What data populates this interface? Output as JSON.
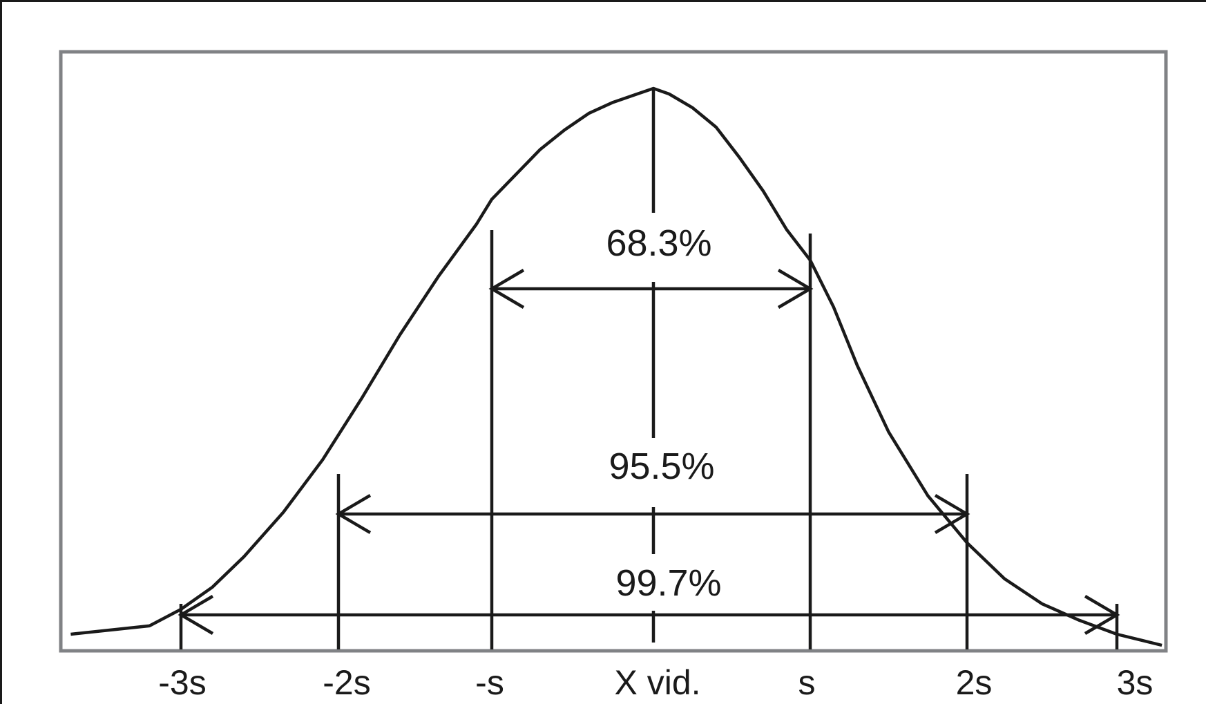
{
  "chart_data": {
    "type": "line",
    "title": "",
    "xlabel": "",
    "ylabel": "",
    "tick_labels": [
      "-3s",
      "-2s",
      "-s",
      "X vid.",
      "s",
      "2s",
      "3s"
    ],
    "x_ticks": [
      -3,
      -2,
      -1,
      0,
      1,
      2,
      3
    ],
    "xlim": [
      -3.7,
      3.3
    ],
    "ylim": [
      0,
      1
    ],
    "grid": false,
    "series": [
      {
        "values_x": [
          -3.7,
          -3.2,
          -3.0,
          -2.8,
          -2.6,
          -2.35,
          -2.1,
          -1.85,
          -1.6,
          -1.35,
          -1.1,
          -1.0,
          -0.85,
          -0.7,
          -0.55,
          -0.4,
          -0.25,
          -0.1,
          0.0,
          0.1,
          0.25,
          0.4,
          0.55,
          0.7,
          0.85,
          1.0,
          1.15,
          1.3,
          1.5,
          1.75,
          2.0,
          2.25,
          2.5,
          2.75,
          3.0,
          3.3
        ],
        "values_y": [
          0.015,
          0.03,
          0.06,
          0.1,
          0.155,
          0.235,
          0.33,
          0.44,
          0.555,
          0.66,
          0.755,
          0.8,
          0.845,
          0.89,
          0.925,
          0.955,
          0.975,
          0.99,
          1.0,
          0.99,
          0.965,
          0.93,
          0.875,
          0.815,
          0.745,
          0.69,
          0.605,
          0.5,
          0.38,
          0.265,
          0.18,
          0.115,
          0.07,
          0.04,
          0.015,
          -0.005
        ]
      }
    ],
    "intervals": [
      {
        "label": "68.3%",
        "from": -1,
        "to": 1
      },
      {
        "label": "95.5%",
        "from": -2,
        "to": 2
      },
      {
        "label": "99.7%",
        "from": -3,
        "to": 3
      }
    ]
  }
}
